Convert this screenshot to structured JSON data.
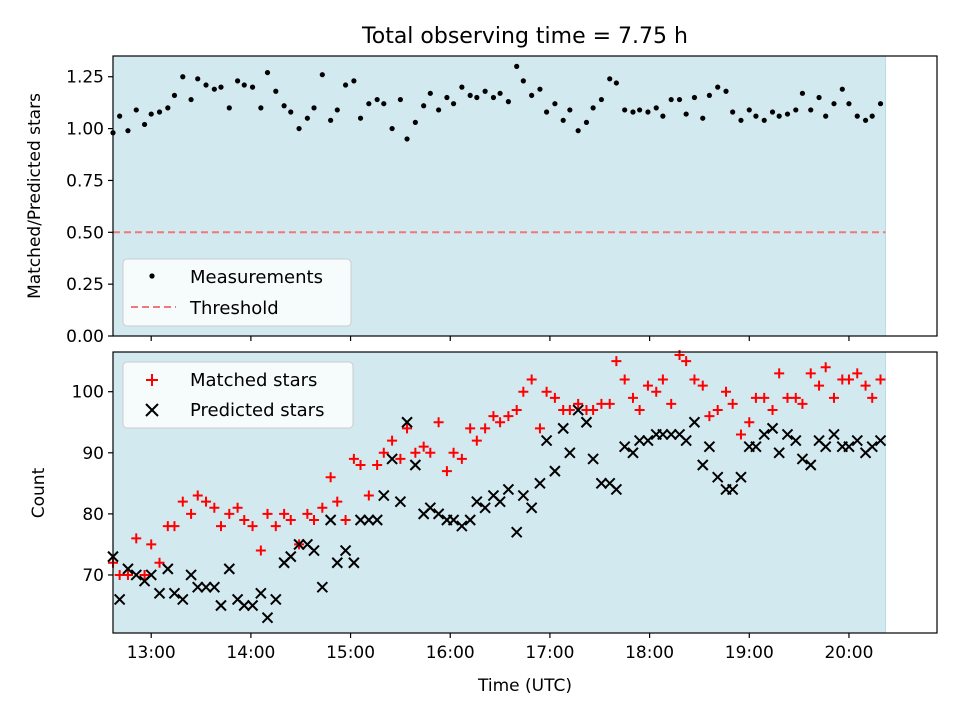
{
  "chart_data": [
    {
      "type": "scatter",
      "title": "Total observing time = 7.75 h",
      "xlabel": "",
      "ylabel": "Matched/Predicted stars",
      "xlim": [
        "12:37",
        "20:53"
      ],
      "ylim": [
        0,
        1.35
      ],
      "ticks_y": [
        "0.00",
        "0.25",
        "0.50",
        "0.75",
        "1.00",
        "1.25"
      ],
      "shaded_span": [
        "12:37",
        "20:22"
      ],
      "shade_color": "#d2e9f0",
      "grid": false,
      "legend_position": "lower-left",
      "series": [
        {
          "name": "Measurements",
          "marker": "dot",
          "color": "#000000",
          "x": [
            "12:37",
            "12:41",
            "12:46",
            "12:51",
            "12:56",
            "13:00",
            "13:05",
            "13:10",
            "13:14",
            "13:19",
            "13:24",
            "13:28",
            "13:33",
            "13:38",
            "13:42",
            "13:47",
            "13:52",
            "13:56",
            "14:01",
            "14:06",
            "14:10",
            "14:15",
            "14:20",
            "14:24",
            "14:29",
            "14:34",
            "14:38",
            "14:43",
            "14:48",
            "14:52",
            "14:57",
            "15:02",
            "15:06",
            "15:11",
            "15:16",
            "15:20",
            "15:25",
            "15:30",
            "15:34",
            "15:39",
            "15:44",
            "15:48",
            "15:53",
            "15:58",
            "16:02",
            "16:07",
            "16:12",
            "16:16",
            "16:21",
            "16:26",
            "16:30",
            "16:35",
            "16:40",
            "16:44",
            "16:49",
            "16:54",
            "16:58",
            "17:03",
            "17:08",
            "17:12",
            "17:17",
            "17:22",
            "17:26",
            "17:31",
            "17:36",
            "17:40",
            "17:45",
            "17:50",
            "17:54",
            "17:59",
            "18:04",
            "18:08",
            "18:13",
            "18:18",
            "18:22",
            "18:27",
            "18:32",
            "18:36",
            "18:41",
            "18:46",
            "18:50",
            "18:55",
            "19:00",
            "19:04",
            "19:09",
            "19:14",
            "19:18",
            "19:23",
            "19:28",
            "19:32",
            "19:37",
            "19:42",
            "19:46",
            "19:51",
            "19:56",
            "20:00",
            "20:05",
            "20:10",
            "20:14",
            "20:19"
          ],
          "y": [
            0.98,
            1.06,
            0.99,
            1.09,
            1.02,
            1.07,
            1.08,
            1.1,
            1.16,
            1.25,
            1.14,
            1.24,
            1.21,
            1.19,
            1.2,
            1.1,
            1.23,
            1.21,
            1.2,
            1.1,
            1.27,
            1.18,
            1.11,
            1.08,
            1.0,
            1.05,
            1.1,
            1.26,
            1.04,
            1.09,
            1.21,
            1.23,
            1.05,
            1.12,
            1.14,
            1.12,
            1.0,
            1.14,
            0.95,
            1.03,
            1.11,
            1.17,
            1.09,
            1.15,
            1.12,
            1.2,
            1.16,
            1.15,
            1.18,
            1.15,
            1.17,
            1.13,
            1.3,
            1.23,
            1.16,
            1.19,
            1.08,
            1.12,
            1.04,
            1.09,
            0.99,
            1.03,
            1.1,
            1.14,
            1.24,
            1.22,
            1.09,
            1.08,
            1.09,
            1.08,
            1.1,
            1.06,
            1.14,
            1.14,
            1.07,
            1.15,
            1.05,
            1.16,
            1.2,
            1.18,
            1.08,
            1.04,
            1.09,
            1.06,
            1.04,
            1.08,
            1.06,
            1.07,
            1.09,
            1.17,
            1.09,
            1.15,
            1.06,
            1.12,
            1.19,
            1.12,
            1.06,
            1.04,
            1.06,
            1.12
          ]
        },
        {
          "name": "Threshold",
          "marker": "dashed-line",
          "color": "#f07878",
          "x": [
            "12:37",
            "20:22"
          ],
          "y": [
            0.5,
            0.5
          ]
        }
      ]
    },
    {
      "type": "scatter",
      "title": "",
      "xlabel": "Time (UTC)",
      "ylabel": "Count",
      "xlim": [
        "12:37",
        "20:53"
      ],
      "ylim": [
        60.5,
        106.5
      ],
      "ticks_x": [
        "13:00",
        "14:00",
        "15:00",
        "16:00",
        "17:00",
        "18:00",
        "19:00",
        "20:00"
      ],
      "ticks_y": [
        "70",
        "80",
        "90",
        "100"
      ],
      "shaded_span": [
        "12:37",
        "20:22"
      ],
      "grid": false,
      "legend_position": "upper-left",
      "series": [
        {
          "name": "Matched stars",
          "marker": "plus",
          "color": "#ff0000",
          "x": [
            "12:37",
            "12:41",
            "12:46",
            "12:51",
            "12:56",
            "13:00",
            "13:05",
            "13:10",
            "13:14",
            "13:19",
            "13:24",
            "13:28",
            "13:33",
            "13:38",
            "13:42",
            "13:47",
            "13:52",
            "13:56",
            "14:01",
            "14:06",
            "14:10",
            "14:15",
            "14:20",
            "14:24",
            "14:29",
            "14:34",
            "14:38",
            "14:43",
            "14:48",
            "14:52",
            "14:57",
            "15:02",
            "15:06",
            "15:11",
            "15:16",
            "15:20",
            "15:25",
            "15:30",
            "15:34",
            "15:39",
            "15:44",
            "15:48",
            "15:53",
            "15:58",
            "16:02",
            "16:07",
            "16:12",
            "16:16",
            "16:21",
            "16:26",
            "16:30",
            "16:35",
            "16:40",
            "16:44",
            "16:49",
            "16:54",
            "16:58",
            "17:03",
            "17:08",
            "17:12",
            "17:17",
            "17:22",
            "17:26",
            "17:31",
            "17:36",
            "17:40",
            "17:45",
            "17:50",
            "17:54",
            "17:59",
            "18:04",
            "18:08",
            "18:13",
            "18:18",
            "18:22",
            "18:27",
            "18:32",
            "18:36",
            "18:41",
            "18:46",
            "18:50",
            "18:55",
            "19:00",
            "19:04",
            "19:09",
            "19:14",
            "19:18",
            "19:23",
            "19:28",
            "19:32",
            "19:37",
            "19:42",
            "19:46",
            "19:51",
            "19:56",
            "20:00",
            "20:05",
            "20:10",
            "20:14",
            "20:19"
          ],
          "y": [
            72,
            70,
            70,
            76,
            70,
            75,
            72,
            78,
            78,
            82,
            80,
            83,
            82,
            81,
            78,
            80,
            81,
            79,
            78,
            74,
            80,
            78,
            80,
            79,
            75,
            80,
            79,
            81,
            86,
            82,
            79,
            89,
            88,
            83,
            88,
            90,
            92,
            89,
            94,
            90,
            91,
            90,
            95,
            87,
            90,
            89,
            94,
            92,
            94,
            96,
            95,
            96,
            97,
            100,
            102,
            94,
            100,
            99,
            97,
            97,
            98,
            97,
            97,
            98,
            98,
            105,
            102,
            99,
            97,
            101,
            100,
            102,
            98,
            106,
            105,
            102,
            101,
            96,
            97,
            100,
            98,
            93,
            95,
            99,
            99,
            97,
            103,
            99,
            99,
            98,
            103,
            101,
            104,
            99,
            102,
            102,
            103,
            101,
            99,
            102
          ]
        },
        {
          "name": "Predicted stars",
          "marker": "x",
          "color": "#000000",
          "x": [
            "12:37",
            "12:41",
            "12:46",
            "12:51",
            "12:56",
            "13:00",
            "13:05",
            "13:10",
            "13:14",
            "13:19",
            "13:24",
            "13:28",
            "13:33",
            "13:38",
            "13:42",
            "13:47",
            "13:52",
            "13:56",
            "14:01",
            "14:06",
            "14:10",
            "14:15",
            "14:20",
            "14:24",
            "14:29",
            "14:34",
            "14:38",
            "14:43",
            "14:48",
            "14:52",
            "14:57",
            "15:02",
            "15:06",
            "15:11",
            "15:16",
            "15:20",
            "15:25",
            "15:30",
            "15:34",
            "15:39",
            "15:44",
            "15:48",
            "15:53",
            "15:58",
            "16:02",
            "16:07",
            "16:12",
            "16:16",
            "16:21",
            "16:26",
            "16:30",
            "16:35",
            "16:40",
            "16:44",
            "16:49",
            "16:54",
            "16:58",
            "17:03",
            "17:08",
            "17:12",
            "17:17",
            "17:22",
            "17:26",
            "17:31",
            "17:36",
            "17:40",
            "17:45",
            "17:50",
            "17:54",
            "17:59",
            "18:04",
            "18:08",
            "18:13",
            "18:18",
            "18:22",
            "18:27",
            "18:32",
            "18:36",
            "18:41",
            "18:46",
            "18:50",
            "18:55",
            "19:00",
            "19:04",
            "19:09",
            "19:14",
            "19:18",
            "19:23",
            "19:28",
            "19:32",
            "19:37",
            "19:42",
            "19:46",
            "19:51",
            "19:56",
            "20:00",
            "20:05",
            "20:10",
            "20:14",
            "20:19"
          ],
          "y": [
            73,
            66,
            71,
            70,
            69,
            70,
            67,
            71,
            67,
            66,
            70,
            68,
            68,
            68,
            65,
            71,
            66,
            65,
            65,
            67,
            63,
            66,
            72,
            73,
            75,
            75,
            74,
            68,
            79,
            72,
            74,
            72,
            79,
            79,
            79,
            83,
            89,
            82,
            95,
            88,
            80,
            81,
            80,
            79,
            79,
            78,
            79,
            82,
            81,
            83,
            82,
            84,
            77,
            83,
            81,
            85,
            92,
            87,
            94,
            90,
            97,
            95,
            89,
            85,
            85,
            84,
            91,
            90,
            92,
            92,
            93,
            93,
            93,
            93,
            92,
            95,
            88,
            91,
            86,
            84,
            84,
            86,
            91,
            91,
            93,
            94,
            90,
            93,
            92,
            89,
            88,
            92,
            91,
            93,
            91,
            91,
            92,
            90,
            91,
            92
          ]
        }
      ]
    }
  ]
}
